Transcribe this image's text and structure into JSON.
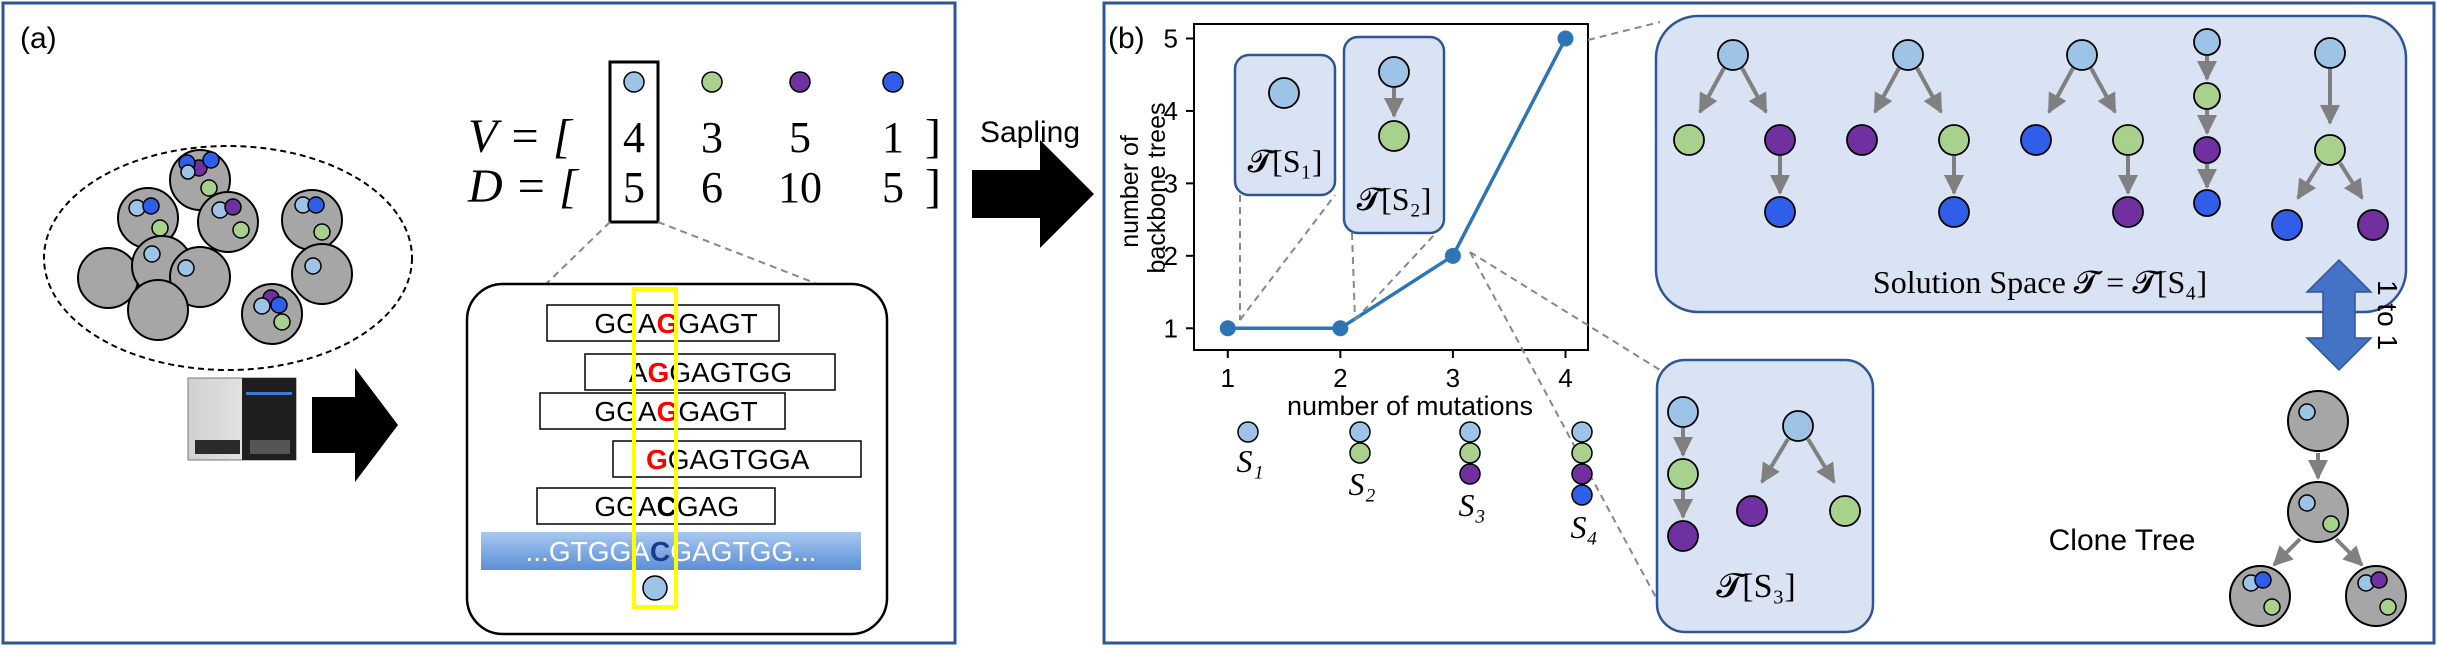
{
  "panel_a": {
    "label": "(a)",
    "v_label": "V = [",
    "d_label": "D = [",
    "v_values": [
      "4",
      "3",
      "5",
      "1"
    ],
    "d_values": [
      "5",
      "6",
      "10",
      "5"
    ],
    "close_bracket": "]",
    "reads": [
      {
        "pre": "GGA",
        "hl": "G",
        "post": "GAGT"
      },
      {
        "pre": "A",
        "hl": "G",
        "post": "GAGTGG"
      },
      {
        "pre": "GGA",
        "hl": "G",
        "post": "GAGT"
      },
      {
        "pre": "",
        "hl": "G",
        "post": "GAGTGGA"
      },
      {
        "pre": "GGA",
        "hl": "C",
        "post": "GAG"
      }
    ],
    "reference": {
      "pre": "...GTGGA",
      "hl": "C",
      "post": "GAGTGG..."
    }
  },
  "arrow_label": "Sapling",
  "panel_b": {
    "label": "(b)",
    "solution_space_label": "Solution Space 𝓣 = 𝓣[S₄]",
    "t_s1": "𝓣[S₁]",
    "t_s2": "𝓣[S₂]",
    "t_s3": "𝓣[S₃]",
    "one_to_one": "1 to 1",
    "clone_tree_label": "Clone Tree",
    "s_labels": [
      "S₁",
      "S₂",
      "S₃",
      "S₄"
    ]
  },
  "chart_data": {
    "type": "line",
    "x": [
      1,
      2,
      3,
      4
    ],
    "y": [
      1,
      1,
      2,
      5
    ],
    "xlabel": "number of mutations",
    "ylabel_line1": "number of",
    "ylabel_line2": "backbone trees",
    "xticks": [
      "1",
      "2",
      "3",
      "4"
    ],
    "yticks": [
      "1",
      "2",
      "3",
      "4",
      "5"
    ],
    "xlim": [
      0.7,
      4.2
    ],
    "ylim": [
      0.7,
      5.2
    ],
    "grid": false,
    "line_color": "#2e75b6"
  },
  "colors": {
    "m1": "#9dc3e6",
    "m2": "#a9d18e",
    "m3": "#7030a0",
    "m4": "#2f5fe8",
    "panel_border": "#2f5597",
    "box_fill": "#dae3f3",
    "highlight": "#ff0000",
    "read_highlight_box": "#ffff00"
  },
  "icons": [
    "sequencer-icon",
    "arrow-right-icon",
    "double-arrow-icon"
  ]
}
